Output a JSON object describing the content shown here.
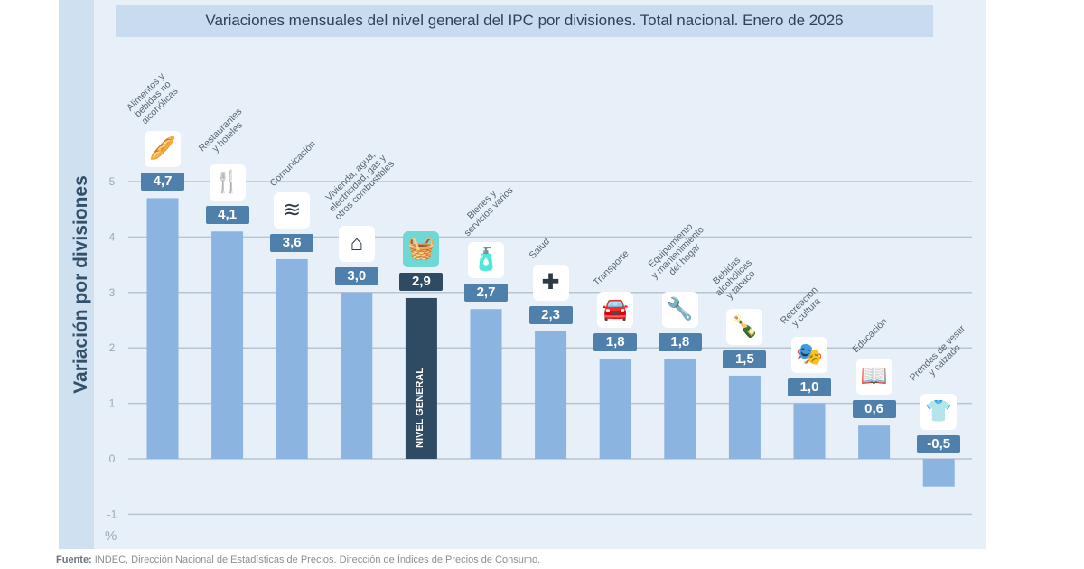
{
  "title": "Variaciones mensuales del nivel general del IPC por divisiones. Total nacional. Enero de 2026",
  "source_label": "Fuente:",
  "source_text": " INDEC, Dirección Nacional de Estadísticas de Precios. Dirección de Índices de Precios de Consumo.",
  "colors": {
    "bar": "#8bb5e0",
    "highlight_bar": "#2f4a63",
    "badge": "#4f80ac",
    "badge_highlight": "#2f4a63",
    "highlight_icon_bg": "#6fd8d4",
    "panel": "#e7f0f9"
  },
  "chart_data": {
    "type": "bar",
    "title": "Variaciones mensuales del nivel general del IPC por divisiones. Total nacional. Enero de 2026",
    "ylabel": "Variación por divisiones",
    "yunit": "%",
    "ylim": [
      -1,
      5.5
    ],
    "yticks": [
      "-1",
      "0",
      "1",
      "2",
      "3",
      "4",
      "5"
    ],
    "grid": true,
    "categories": [
      "Alimentos y bebidas no alcohólicas",
      "Restaurantes y hoteles",
      "Comunicación",
      "Vivienda, agua, electricidad, gas y otros combustibles",
      "NIVEL GENERAL",
      "Bienes y servicios varios",
      "Salud",
      "Transporte",
      "Equipamiento y mantenimiento del hogar",
      "Bebidas alcohólicas y tabaco",
      "Recreación y cultura",
      "Educación",
      "Prendas de vestir y calzado"
    ],
    "category_label_lines": [
      [
        "Alimentos y",
        "bebidas no",
        "alcohólicas"
      ],
      [
        "Restaurantes",
        "y hoteles"
      ],
      [
        "Comunicación"
      ],
      [
        "Vivienda, agua,",
        "electricidad, gas y",
        "otros combustibles"
      ],
      [],
      [
        "Bienes y",
        "servicios varios"
      ],
      [
        "Salud"
      ],
      [
        "Transporte"
      ],
      [
        "Equipamiento",
        "y mantenimiento",
        "del hogar"
      ],
      [
        "Bebidas",
        "alcohólicas",
        "y tabaco"
      ],
      [
        "Recreación",
        "y cultura"
      ],
      [
        "Educación"
      ],
      [
        "Prendas de vestir",
        "y calzado"
      ]
    ],
    "values": [
      4.7,
      4.1,
      3.6,
      3.0,
      2.9,
      2.7,
      2.3,
      1.8,
      1.8,
      1.5,
      1.0,
      0.6,
      -0.5
    ],
    "value_labels": [
      "4,7",
      "4,1",
      "3,6",
      "3,0",
      "2,9",
      "2,7",
      "2,3",
      "1,8",
      "1,8",
      "1,5",
      "1,0",
      "0,6",
      "-0,5"
    ],
    "highlight_index": 4,
    "icons": [
      "food-basket-icon",
      "fork-hotel-icon",
      "wifi-icon",
      "house-energy-icon",
      "shopping-basket-icon",
      "personal-care-icon",
      "health-cross-icon",
      "car-repair-icon",
      "tools-icon",
      "bottle-glass-icon",
      "theater-masks-icon",
      "book-icon",
      "shirt-icon"
    ]
  }
}
